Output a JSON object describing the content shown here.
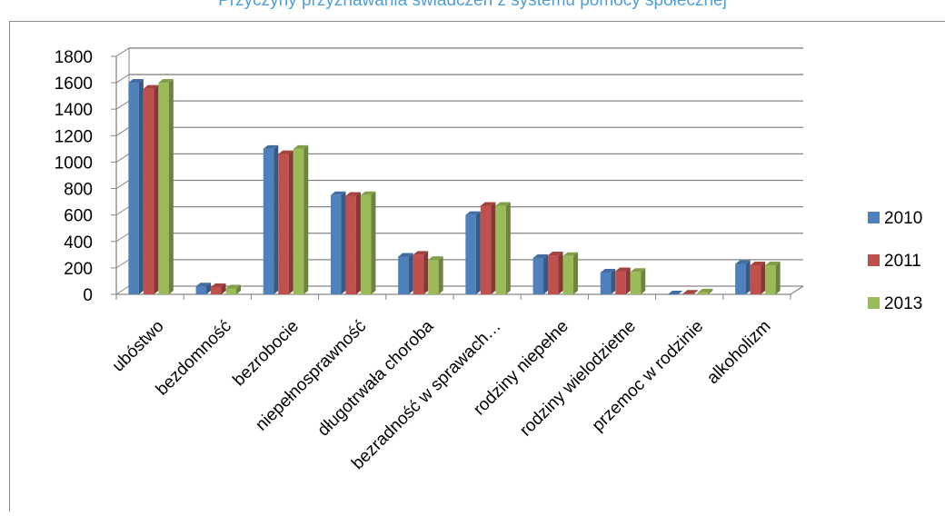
{
  "chart_data": {
    "type": "bar",
    "title": "Przyczyny przyznawania świadczeń z systemu pomocy społecznej",
    "xlabel": "",
    "ylabel": "",
    "ylim": [
      0,
      1800
    ],
    "yticks": [
      "0",
      "200",
      "400",
      "600",
      "800",
      "1000",
      "1200",
      "1400",
      "1600",
      "1800"
    ],
    "grid": true,
    "legend_position": "right",
    "categories": [
      "ubóstwo",
      "bezdomność",
      "bezrobocie",
      "niepełnosprawność",
      "długotrwała choroba",
      "bezradność w sprawach…",
      "rodziny niepełne",
      "rodziny wielodzietne",
      "przemoc w rodzinie",
      "alkoholizm"
    ],
    "series": [
      {
        "name": "2010",
        "color": "#4f81bd",
        "values": [
          1600,
          60,
          1100,
          750,
          285,
          600,
          275,
          165,
          0,
          230
        ]
      },
      {
        "name": "2011",
        "color": "#c0504d",
        "values": [
          1555,
          55,
          1060,
          745,
          300,
          670,
          295,
          175,
          5,
          220
        ]
      },
      {
        "name": "2013",
        "color": "#9bbb59",
        "values": [
          1600,
          45,
          1100,
          750,
          260,
          670,
          290,
          170,
          15,
          220
        ]
      }
    ]
  }
}
